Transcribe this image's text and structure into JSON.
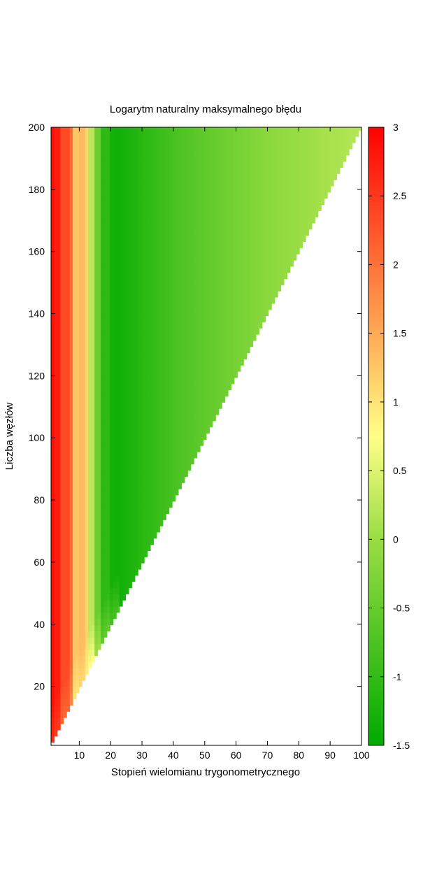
{
  "chart_data": {
    "type": "heatmap",
    "title": "Logarytm naturalny maksymalnego błędu",
    "xlabel": "Stopień wielomianu trygonometrycznego",
    "ylabel": "Liczba węzłów",
    "xlim": [
      1,
      100
    ],
    "ylim": [
      1,
      200
    ],
    "xticks": [
      10,
      20,
      30,
      40,
      50,
      60,
      70,
      80,
      90,
      100
    ],
    "yticks": [
      20,
      40,
      60,
      80,
      100,
      120,
      140,
      160,
      180,
      200
    ],
    "colorbar": {
      "range": [
        -1.5,
        3
      ],
      "ticks": [
        3,
        2.5,
        2,
        1.5,
        1,
        0.5,
        0,
        -0.5,
        -1,
        -1.5
      ],
      "colors": {
        "-1.5": "#00aa00",
        "0": "#99dd44",
        "0.75": "#ffff88",
        "1.5": "#ffaa55",
        "3": "#ff0000"
      }
    },
    "domain": "cells defined where nodes >= 2 * degree",
    "columns": [
      {
        "degree": 1,
        "value": 2.85
      },
      {
        "degree": 2,
        "value": 2.75
      },
      {
        "degree": 4,
        "value": 2.35
      },
      {
        "degree": 7,
        "value": 2.05
      },
      {
        "degree": 8,
        "value": 1.25
      },
      {
        "degree": 10,
        "value": 1.35
      },
      {
        "degree": 12,
        "value": 1.15
      },
      {
        "degree": 13,
        "value": 0.25
      },
      {
        "degree": 15,
        "value": -0.45
      },
      {
        "degree": 17,
        "value": -1.05
      },
      {
        "degree": 20,
        "value": -1.3
      },
      {
        "degree": 22,
        "value": -1.35
      },
      {
        "degree": 30,
        "value": -1.1
      },
      {
        "degree": 40,
        "value": -0.8
      },
      {
        "degree": 50,
        "value": -0.55
      },
      {
        "degree": 60,
        "value": -0.35
      },
      {
        "degree": 70,
        "value": -0.15
      },
      {
        "degree": 80,
        "value": 0.0
      },
      {
        "degree": 90,
        "value": 0.1
      },
      {
        "degree": 100,
        "value": 0.2
      }
    ]
  }
}
